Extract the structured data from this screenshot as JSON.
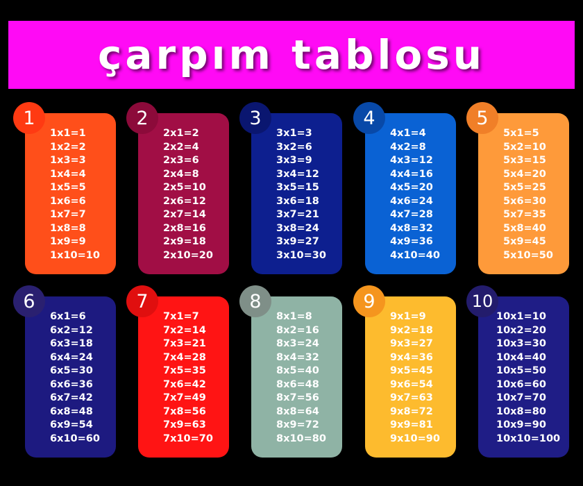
{
  "title": "çarpım tablosu",
  "tables": [
    {
      "number": "1",
      "card_color": "#ff4f1a",
      "badge_color": "#ff3a12",
      "lines": [
        "1x1=1",
        "1x2=2",
        "1x3=3",
        "1x4=4",
        "1x5=5",
        "1x6=6",
        "1x7=7",
        "1x8=8",
        "1x9=9",
        "1x10=10"
      ]
    },
    {
      "number": "2",
      "card_color": "#a10e45",
      "badge_color": "#8c0a3a",
      "lines": [
        "2x1=2",
        "2x2=4",
        "2x3=6",
        "2x4=8",
        "2x5=10",
        "2x6=12",
        "2x7=14",
        "2x8=16",
        "2x9=18",
        "2x10=20"
      ]
    },
    {
      "number": "3",
      "card_color": "#0d1f8f",
      "badge_color": "#0a1670",
      "lines": [
        "3x1=3",
        "3x2=6",
        "3x3=9",
        "3x4=12",
        "3x5=15",
        "3x6=18",
        "3x7=21",
        "3x8=24",
        "3x9=27",
        "3x10=30"
      ]
    },
    {
      "number": "4",
      "card_color": "#0a62d4",
      "badge_color": "#0849a8",
      "lines": [
        "4x1=4",
        "4x2=8",
        "4x3=12",
        "4x4=16",
        "4x5=20",
        "4x6=24",
        "4x7=28",
        "4x8=32",
        "4x9=36",
        "4x10=40"
      ]
    },
    {
      "number": "5",
      "card_color": "#fe9a3a",
      "badge_color": "#f07f28",
      "lines": [
        "5x1=5",
        "5x2=10",
        "5x3=15",
        "5x4=20",
        "5x5=25",
        "5x6=30",
        "5x7=35",
        "5x8=40",
        "5x9=45",
        "5x10=50"
      ]
    },
    {
      "number": "6",
      "card_color": "#1d1a80",
      "badge_color": "#2a2070",
      "lines": [
        "6x1=6",
        "6x2=12",
        "6x3=18",
        "6x4=24",
        "6x5=30",
        "6x6=36",
        "6x7=42",
        "6x8=48",
        "6x9=54",
        "6x10=60"
      ]
    },
    {
      "number": "7",
      "card_color": "#ff1414",
      "badge_color": "#e00f0f",
      "lines": [
        "7x1=7",
        "7x2=14",
        "7x3=21",
        "7x4=28",
        "7x5=35",
        "7x6=42",
        "7x7=49",
        "7x8=56",
        "7x9=63",
        "7x10=70"
      ]
    },
    {
      "number": "8",
      "card_color": "#8fb3a5",
      "badge_color": "#7f8f88",
      "lines": [
        "8x1=8",
        "8x2=16",
        "8x3=24",
        "8x4=32",
        "8x5=40",
        "8x6=48",
        "8x7=56",
        "8x8=64",
        "8x9=72",
        "8x10=80"
      ]
    },
    {
      "number": "9",
      "card_color": "#fdbb2e",
      "badge_color": "#f5951e",
      "lines": [
        "9x1=9",
        "9x2=18",
        "9x3=27",
        "9x4=36",
        "9x5=45",
        "9x6=54",
        "9x7=63",
        "9x8=72",
        "9x9=81",
        "9x10=90"
      ]
    },
    {
      "number": "10",
      "card_color": "#1f1d86",
      "badge_color": "#231c6c",
      "lines": [
        "10x1=10",
        "10x2=20",
        "10x3=30",
        "10x4=40",
        "10x5=50",
        "10x6=60",
        "10x7=70",
        "10x8=80",
        "10x9=90",
        "10x10=100"
      ]
    }
  ]
}
